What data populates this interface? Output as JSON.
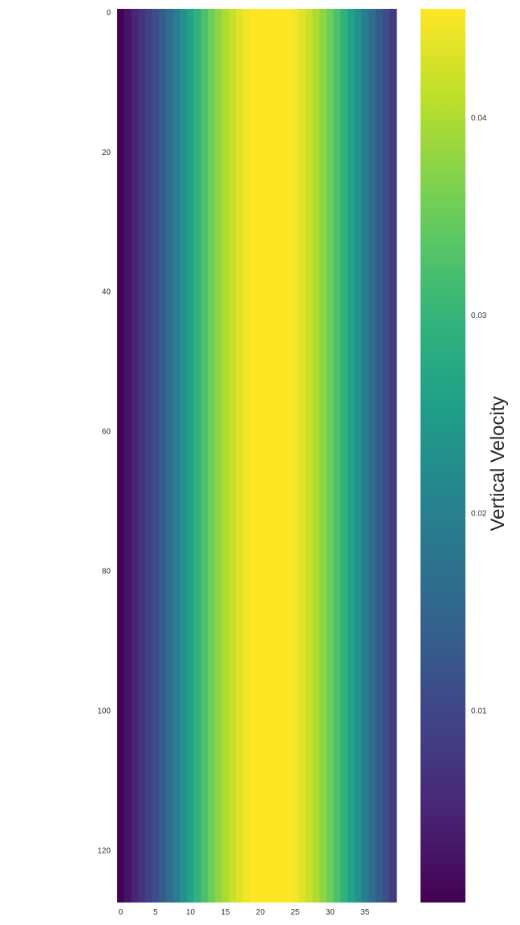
{
  "chart_data": {
    "type": "heatmap",
    "title": "",
    "xlabel": "",
    "ylabel": "",
    "n_cols": 40,
    "n_rows": 128,
    "x_ticks": [
      0,
      5,
      10,
      15,
      20,
      25,
      30,
      35
    ],
    "y_ticks": [
      0,
      20,
      40,
      60,
      80,
      100,
      120
    ],
    "column_profile": [
      0.0003,
      0.0027,
      0.005,
      0.0072,
      0.0092,
      0.0111,
      0.0134,
      0.0164,
      0.0197,
      0.0231,
      0.0264,
      0.0295,
      0.0325,
      0.0352,
      0.0377,
      0.0399,
      0.0418,
      0.0434,
      0.0447,
      0.0455,
      0.0458,
      0.0458,
      0.0458,
      0.0458,
      0.0455,
      0.0447,
      0.0434,
      0.0418,
      0.0399,
      0.0377,
      0.0352,
      0.0325,
      0.0295,
      0.0264,
      0.0231,
      0.0197,
      0.0164,
      0.0134,
      0.0111,
      0.008
    ],
    "colormap": "viridis",
    "colorbar": {
      "label": "Vertical Velocity",
      "min": 0.0003,
      "max": 0.0455,
      "ticks": [
        0.01,
        0.02,
        0.03,
        0.04
      ],
      "tick_labels": [
        "0.01",
        "0.02",
        "0.03",
        "0.04"
      ]
    }
  }
}
